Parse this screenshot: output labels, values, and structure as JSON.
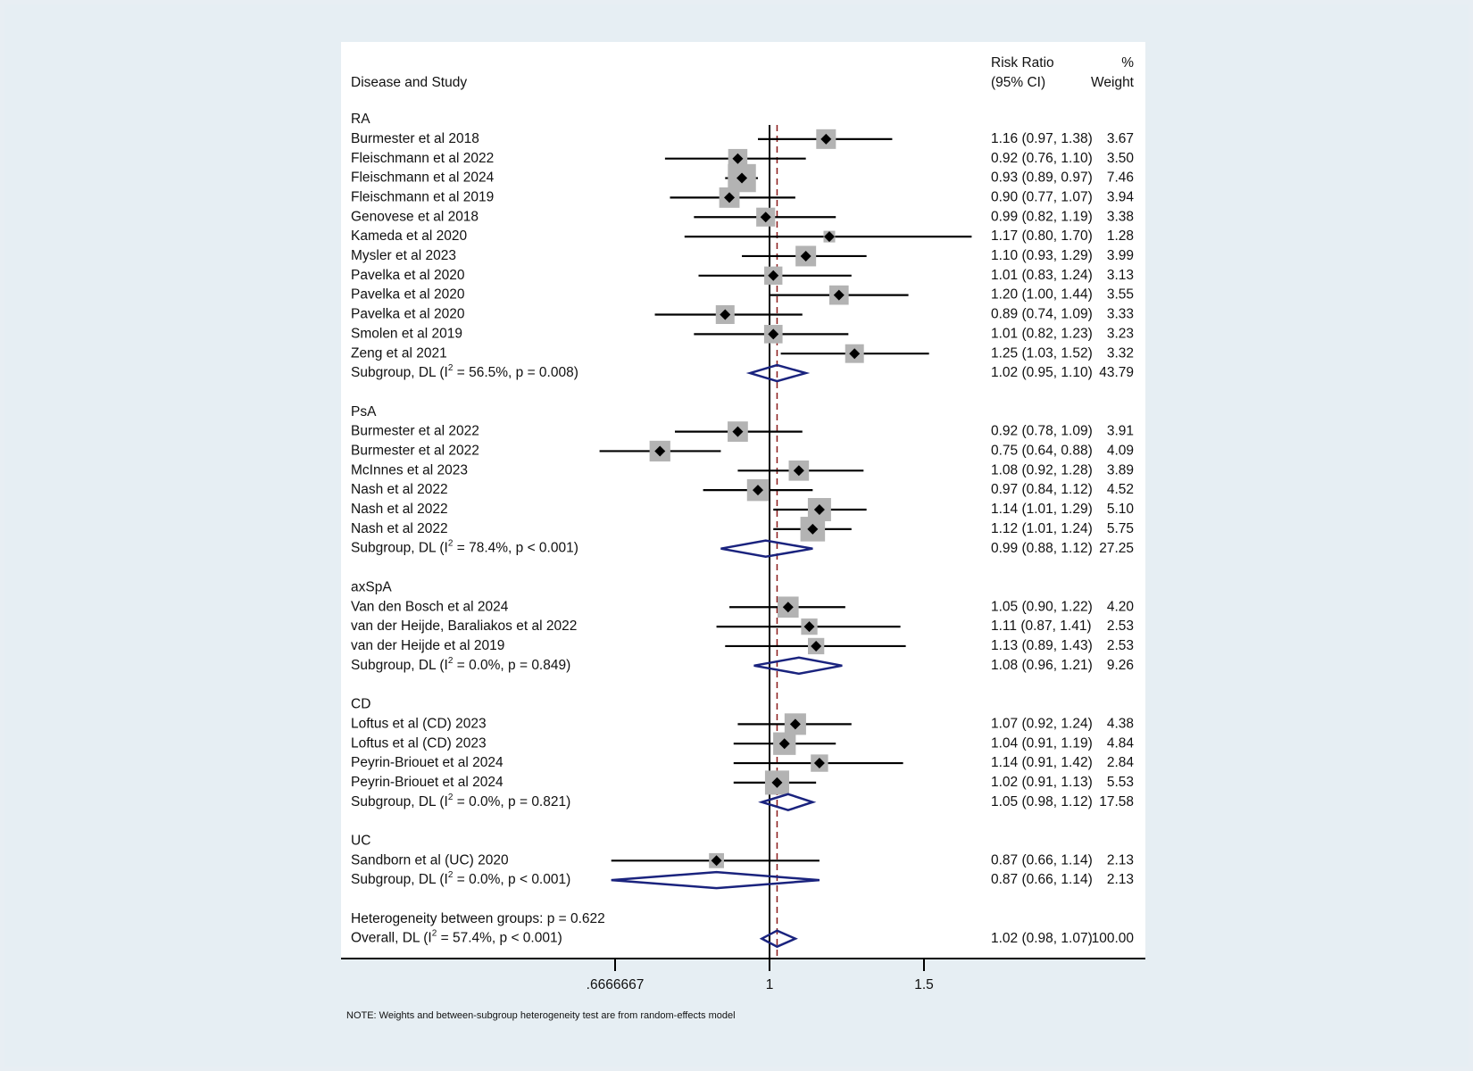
{
  "chart_data": {
    "type": "forest",
    "header": {
      "study_col": "Disease and Study",
      "rr_col_line1": "Risk Ratio",
      "rr_col_line2": "(95% CI)",
      "weight_col_line1": "%",
      "weight_col_line2": "Weight"
    },
    "x_scale": "log",
    "xlim": [
      0.6,
      1.85
    ],
    "null_line": 1,
    "overall_line": 1.02,
    "x_ticks": [
      {
        "value": 0.6666667,
        "label": ".6666667"
      },
      {
        "value": 1,
        "label": "1"
      },
      {
        "value": 1.5,
        "label": "1.5"
      }
    ],
    "groups": [
      {
        "name": "RA",
        "studies": [
          {
            "label": "Burmester et al 2018",
            "rr": 1.16,
            "lo": 0.97,
            "hi": 1.38,
            "ci_text": "1.16 (0.97, 1.38)",
            "weight": 3.67,
            "weight_text": "3.67"
          },
          {
            "label": "Fleischmann et al 2022",
            "rr": 0.92,
            "lo": 0.76,
            "hi": 1.1,
            "ci_text": "0.92 (0.76, 1.10)",
            "weight": 3.5,
            "weight_text": "3.50"
          },
          {
            "label": "Fleischmann et al 2024",
            "rr": 0.93,
            "lo": 0.89,
            "hi": 0.97,
            "ci_text": "0.93 (0.89, 0.97)",
            "weight": 7.46,
            "weight_text": "7.46"
          },
          {
            "label": "Fleischmann et al 2019",
            "rr": 0.9,
            "lo": 0.77,
            "hi": 1.07,
            "ci_text": "0.90 (0.77, 1.07)",
            "weight": 3.94,
            "weight_text": "3.94"
          },
          {
            "label": "Genovese et al 2018",
            "rr": 0.99,
            "lo": 0.82,
            "hi": 1.19,
            "ci_text": "0.99 (0.82, 1.19)",
            "weight": 3.38,
            "weight_text": "3.38"
          },
          {
            "label": "Kameda et al 2020",
            "rr": 1.17,
            "lo": 0.8,
            "hi": 1.7,
            "ci_text": "1.17 (0.80, 1.70)",
            "weight": 1.28,
            "weight_text": "1.28"
          },
          {
            "label": "Mysler et al 2023",
            "rr": 1.1,
            "lo": 0.93,
            "hi": 1.29,
            "ci_text": "1.10 (0.93, 1.29)",
            "weight": 3.99,
            "weight_text": "3.99"
          },
          {
            "label": "Pavelka et al 2020",
            "rr": 1.01,
            "lo": 0.83,
            "hi": 1.24,
            "ci_text": "1.01 (0.83, 1.24)",
            "weight": 3.13,
            "weight_text": "3.13"
          },
          {
            "label": "Pavelka et al 2020",
            "rr": 1.2,
            "lo": 1.0,
            "hi": 1.44,
            "ci_text": "1.20 (1.00, 1.44)",
            "weight": 3.55,
            "weight_text": "3.55"
          },
          {
            "label": "Pavelka et al 2020",
            "rr": 0.89,
            "lo": 0.74,
            "hi": 1.09,
            "ci_text": "0.89 (0.74, 1.09)",
            "weight": 3.33,
            "weight_text": "3.33"
          },
          {
            "label": "Smolen et al 2019",
            "rr": 1.01,
            "lo": 0.82,
            "hi": 1.23,
            "ci_text": "1.01 (0.82, 1.23)",
            "weight": 3.23,
            "weight_text": "3.23"
          },
          {
            "label": "Zeng et al 2021",
            "rr": 1.25,
            "lo": 1.03,
            "hi": 1.52,
            "ci_text": "1.25 (1.03, 1.52)",
            "weight": 3.32,
            "weight_text": "3.32"
          }
        ],
        "subgroup": {
          "label_pre": "Subgroup, DL (I",
          "label_post": " = 56.5%, p = 0.008)",
          "sup": "2",
          "rr": 1.02,
          "lo": 0.95,
          "hi": 1.1,
          "ci_text": "1.02 (0.95, 1.10)",
          "weight_text": "43.79"
        }
      },
      {
        "name": "PsA",
        "studies": [
          {
            "label": "Burmester et al 2022",
            "rr": 0.92,
            "lo": 0.78,
            "hi": 1.09,
            "ci_text": "0.92 (0.78, 1.09)",
            "weight": 3.91,
            "weight_text": "3.91"
          },
          {
            "label": "Burmester et al 2022",
            "rr": 0.75,
            "lo": 0.64,
            "hi": 0.88,
            "ci_text": "0.75 (0.64, 0.88)",
            "weight": 4.09,
            "weight_text": "4.09"
          },
          {
            "label": "McInnes et al 2023",
            "rr": 1.08,
            "lo": 0.92,
            "hi": 1.28,
            "ci_text": "1.08 (0.92, 1.28)",
            "weight": 3.89,
            "weight_text": "3.89"
          },
          {
            "label": "Nash et al 2022",
            "rr": 0.97,
            "lo": 0.84,
            "hi": 1.12,
            "ci_text": "0.97 (0.84, 1.12)",
            "weight": 4.52,
            "weight_text": "4.52"
          },
          {
            "label": "Nash et al 2022",
            "rr": 1.14,
            "lo": 1.01,
            "hi": 1.29,
            "ci_text": "1.14 (1.01, 1.29)",
            "weight": 5.1,
            "weight_text": "5.10"
          },
          {
            "label": "Nash et al 2022",
            "rr": 1.12,
            "lo": 1.01,
            "hi": 1.24,
            "ci_text": "1.12 (1.01, 1.24)",
            "weight": 5.75,
            "weight_text": "5.75"
          }
        ],
        "subgroup": {
          "label_pre": "Subgroup, DL (I",
          "label_post": " = 78.4%, p < 0.001)",
          "sup": "2",
          "rr": 0.99,
          "lo": 0.88,
          "hi": 1.12,
          "ci_text": "0.99 (0.88, 1.12)",
          "weight_text": "27.25"
        }
      },
      {
        "name": "axSpA",
        "studies": [
          {
            "label": "Van den Bosch et al 2024",
            "rr": 1.05,
            "lo": 0.9,
            "hi": 1.22,
            "ci_text": "1.05 (0.90, 1.22)",
            "weight": 4.2,
            "weight_text": "4.20"
          },
          {
            "label": "van der Heijde, Baraliakos et al 2022",
            "rr": 1.11,
            "lo": 0.87,
            "hi": 1.41,
            "ci_text": "1.11 (0.87, 1.41)",
            "weight": 2.53,
            "weight_text": "2.53"
          },
          {
            "label": "van der Heijde et al 2019",
            "rr": 1.13,
            "lo": 0.89,
            "hi": 1.43,
            "ci_text": "1.13 (0.89, 1.43)",
            "weight": 2.53,
            "weight_text": "2.53"
          }
        ],
        "subgroup": {
          "label_pre": "Subgroup, DL (I",
          "label_post": " = 0.0%, p = 0.849)",
          "sup": "2",
          "rr": 1.08,
          "lo": 0.96,
          "hi": 1.21,
          "ci_text": "1.08 (0.96, 1.21)",
          "weight_text": "9.26"
        }
      },
      {
        "name": "CD",
        "studies": [
          {
            "label": "Loftus et al (CD) 2023",
            "rr": 1.07,
            "lo": 0.92,
            "hi": 1.24,
            "ci_text": "1.07 (0.92, 1.24)",
            "weight": 4.38,
            "weight_text": "4.38"
          },
          {
            "label": "Loftus et al (CD) 2023",
            "rr": 1.04,
            "lo": 0.91,
            "hi": 1.19,
            "ci_text": "1.04 (0.91, 1.19)",
            "weight": 4.84,
            "weight_text": "4.84"
          },
          {
            "label": "Peyrin-Briouet et al 2024",
            "rr": 1.14,
            "lo": 0.91,
            "hi": 1.42,
            "ci_text": "1.14 (0.91, 1.42)",
            "weight": 2.84,
            "weight_text": "2.84"
          },
          {
            "label": "Peyrin-Briouet et al 2024",
            "rr": 1.02,
            "lo": 0.91,
            "hi": 1.13,
            "ci_text": "1.02 (0.91, 1.13)",
            "weight": 5.53,
            "weight_text": "5.53"
          }
        ],
        "subgroup": {
          "label_pre": "Subgroup, DL (I",
          "label_post": " = 0.0%, p = 0.821)",
          "sup": "2",
          "rr": 1.05,
          "lo": 0.98,
          "hi": 1.12,
          "ci_text": "1.05 (0.98, 1.12)",
          "weight_text": "17.58"
        }
      },
      {
        "name": "UC",
        "studies": [
          {
            "label": "Sandborn et al (UC) 2020",
            "rr": 0.87,
            "lo": 0.66,
            "hi": 1.14,
            "ci_text": "0.87 (0.66, 1.14)",
            "weight": 2.13,
            "weight_text": "2.13"
          }
        ],
        "subgroup": {
          "label_pre": "Subgroup, DL (I",
          "label_post": " = 0.0%, p < 0.001)",
          "sup": "2",
          "rr": 0.87,
          "lo": 0.66,
          "hi": 1.14,
          "ci_text": "0.87 (0.66, 1.14)",
          "weight_text": "2.13"
        }
      }
    ],
    "heterogeneity_text": "Heterogeneity between groups: p = 0.622",
    "overall": {
      "label_pre": "Overall, DL (I",
      "label_post": " = 57.4%, p < 0.001)",
      "sup": "2",
      "rr": 1.02,
      "lo": 0.98,
      "hi": 1.07,
      "ci_text": "1.02 (0.98, 1.07)",
      "weight_text": "100.00"
    },
    "note": "NOTE: Weights and between-subgroup heterogeneity test are from random-effects model",
    "colors": {
      "background": "#e6eef3",
      "panel": "#ffffff",
      "ci_line": "#000000",
      "weight_box": "#b3b3b3",
      "point": "#000000",
      "diamond": "#1a237e",
      "overall_line": "#8b1a1a"
    }
  }
}
